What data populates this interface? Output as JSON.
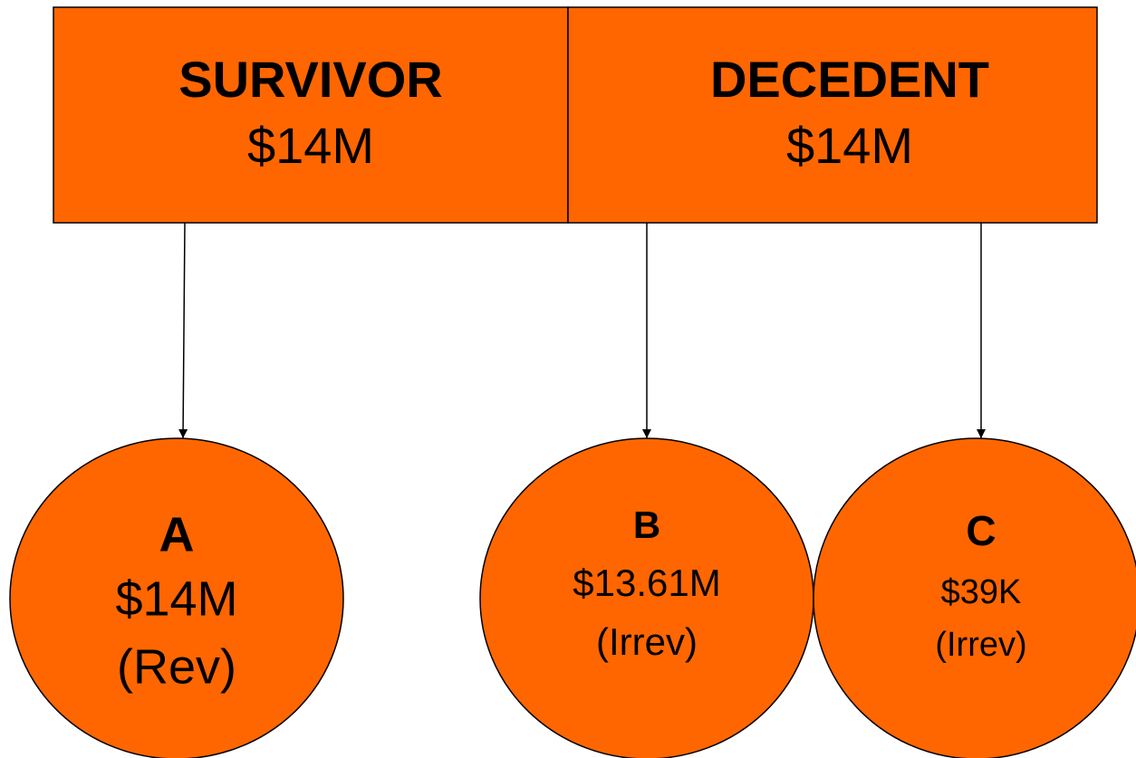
{
  "boxes": [
    {
      "label": "SURVIVOR",
      "amount": "$14M"
    },
    {
      "label": "DECEDENT",
      "amount": "$14M"
    }
  ],
  "circles": [
    {
      "label": "A",
      "amount": "$14M",
      "note": "(Rev)"
    },
    {
      "label": "B",
      "amount": "$13.61M",
      "note": "(Irrev)"
    },
    {
      "label": "C",
      "amount": "$39K",
      "note": "(Irrev)"
    }
  ]
}
